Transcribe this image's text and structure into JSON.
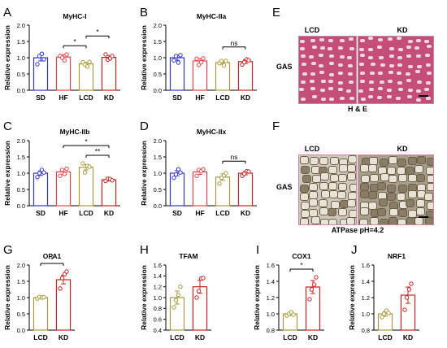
{
  "figure": {
    "panel_letters": [
      "A",
      "B",
      "C",
      "D",
      "E",
      "F",
      "G",
      "H",
      "I",
      "J"
    ],
    "histology": {
      "E": {
        "row_label": "GAS",
        "col_labels": [
          "LCD",
          "KD"
        ],
        "caption": "H & E"
      },
      "F": {
        "row_label": "GAS",
        "col_labels": [
          "LCD",
          "KD"
        ],
        "caption": "ATPase pH=4.2"
      }
    }
  },
  "colors": {
    "SD": "#3333cc",
    "HF": "#e8434a",
    "LCD": "#a89a3c",
    "KD": "#cc2222"
  },
  "chart_data": [
    {
      "panel": "A",
      "type": "bar",
      "title": "MyHC-I",
      "ylabel": "Relative expression",
      "categories": [
        "SD",
        "HF",
        "LCD",
        "KD"
      ],
      "values": [
        1.0,
        1.02,
        0.81,
        1.01
      ],
      "errors": [
        0.1,
        0.07,
        0.05,
        0.06
      ],
      "ylim": [
        0,
        2.0
      ],
      "yticks": [
        "0.0",
        "0.5",
        "1.0",
        "1.5",
        "2.0"
      ],
      "points": [
        [
          0.8,
          1.05,
          1.12,
          0.95
        ],
        [
          1.06,
          1.0,
          0.92,
          1.1
        ],
        [
          0.86,
          0.79,
          0.73,
          0.87
        ],
        [
          1.1,
          0.94,
          0.98,
          1.05
        ]
      ],
      "significance": [
        {
          "from": "HF",
          "to": "LCD",
          "label": "*"
        },
        {
          "from": "LCD",
          "to": "KD",
          "label": "*"
        }
      ]
    },
    {
      "panel": "B",
      "type": "bar",
      "title": "MyHC-IIa",
      "ylabel": "Relative expression",
      "categories": [
        "SD",
        "HF",
        "LCD",
        "KD"
      ],
      "values": [
        1.0,
        0.9,
        0.85,
        0.88
      ],
      "errors": [
        0.08,
        0.08,
        0.05,
        0.06
      ],
      "ylim": [
        0,
        2.0
      ],
      "yticks": [
        "0.0",
        "0.5",
        "1.0",
        "1.5",
        "2.0"
      ],
      "points": [
        [
          0.92,
          1.05,
          0.85,
          1.08
        ],
        [
          0.97,
          0.78,
          0.86,
          0.98
        ],
        [
          0.83,
          0.9,
          0.76,
          0.9
        ],
        [
          0.79,
          0.86,
          0.95,
          0.92
        ]
      ],
      "significance": [
        {
          "from": "LCD",
          "to": "KD",
          "label": "ns"
        }
      ]
    },
    {
      "panel": "C",
      "type": "bar",
      "title": "MyHC-IIb",
      "ylabel": "Relative expression",
      "categories": [
        "SD",
        "HF",
        "LCD",
        "KD"
      ],
      "values": [
        1.0,
        1.04,
        1.18,
        0.8
      ],
      "errors": [
        0.07,
        0.08,
        0.08,
        0.04
      ],
      "ylim": [
        0,
        2.0
      ],
      "yticks": [
        "0.0",
        "0.5",
        "1.0",
        "1.5",
        "2.0"
      ],
      "points": [
        [
          0.88,
          1.0,
          1.1,
          1.02
        ],
        [
          0.92,
          1.1,
          0.98,
          1.14
        ],
        [
          1.3,
          1.02,
          1.22,
          1.2
        ],
        [
          0.76,
          0.83,
          0.82,
          0.78
        ]
      ],
      "significance": [
        {
          "from": "LCD",
          "to": "KD",
          "label": "**"
        },
        {
          "from": "HF",
          "to": "KD",
          "label": "*"
        }
      ]
    },
    {
      "panel": "D",
      "type": "bar",
      "title": "MyHC-IIx",
      "ylabel": "Relative expression",
      "categories": [
        "SD",
        "HF",
        "LCD",
        "KD"
      ],
      "values": [
        1.0,
        1.04,
        0.88,
        1.0
      ],
      "errors": [
        0.08,
        0.08,
        0.1,
        0.05
      ],
      "ylim": [
        0,
        2.0
      ],
      "yticks": [
        "0.0",
        "0.5",
        "1.0",
        "1.5",
        "2.0"
      ],
      "points": [
        [
          0.86,
          0.96,
          1.12,
          1.02
        ],
        [
          0.92,
          1.1,
          1.06,
          1.12
        ],
        [
          0.68,
          0.86,
          0.93,
          1.0
        ],
        [
          0.92,
          0.98,
          1.06,
          1.05
        ]
      ],
      "significance": [
        {
          "from": "LCD",
          "to": "KD",
          "label": "ns"
        }
      ]
    },
    {
      "panel": "G",
      "type": "bar",
      "title": "OPA1",
      "ylabel": "Relative expression",
      "categories": [
        "LCD",
        "KD"
      ],
      "values": [
        1.0,
        1.55
      ],
      "errors": [
        0.03,
        0.13
      ],
      "ylim": [
        0,
        2.0
      ],
      "yticks": [
        "0.0",
        "0.5",
        "1.0",
        "1.5",
        "2.0"
      ],
      "points": [
        [
          0.97,
          1.02,
          1.0,
          1.01
        ],
        [
          1.28,
          1.6,
          1.72,
          1.8
        ]
      ],
      "significance": [
        {
          "from": "LCD",
          "to": "KD",
          "label": "*"
        }
      ]
    },
    {
      "panel": "H",
      "type": "bar",
      "title": "TFAM",
      "ylabel": "Relative expression",
      "categories": [
        "LCD",
        "KD"
      ],
      "values": [
        1.0,
        1.2
      ],
      "errors": [
        0.12,
        0.12
      ],
      "ylim": [
        0.4,
        1.6
      ],
      "yticks": [
        "0.4",
        "0.6",
        "0.8",
        "1.0",
        "1.2",
        "1.4",
        "1.6"
      ],
      "points": [
        [
          0.82,
          0.95,
          1.05,
          1.2
        ],
        [
          1.0,
          1.12,
          1.35,
          1.36
        ]
      ],
      "significance": []
    },
    {
      "panel": "I",
      "type": "bar",
      "title": "COX1",
      "ylabel": "Relative expression",
      "categories": [
        "LCD",
        "KD"
      ],
      "values": [
        1.0,
        1.33
      ],
      "errors": [
        0.02,
        0.08
      ],
      "ylim": [
        0.8,
        1.6
      ],
      "yticks": [
        "0.8",
        "1.0",
        "1.2",
        "1.4",
        "1.6"
      ],
      "points": [
        [
          0.98,
          1.0,
          1.02,
          0.99
        ],
        [
          1.18,
          1.3,
          1.36,
          1.45
        ]
      ],
      "significance": [
        {
          "from": "LCD",
          "to": "KD",
          "label": "*"
        }
      ]
    },
    {
      "panel": "J",
      "type": "bar",
      "title": "NRF1",
      "ylabel": "Relative expression",
      "categories": [
        "LCD",
        "KD"
      ],
      "values": [
        1.0,
        1.23
      ],
      "errors": [
        0.03,
        0.1
      ],
      "ylim": [
        0.8,
        1.6
      ],
      "yticks": [
        "0.8",
        "1.0",
        "1.2",
        "1.4",
        "1.6"
      ],
      "points": [
        [
          0.96,
          1.0,
          1.04,
          1.01
        ],
        [
          1.05,
          1.2,
          1.3,
          1.37
        ]
      ],
      "significance": []
    }
  ]
}
